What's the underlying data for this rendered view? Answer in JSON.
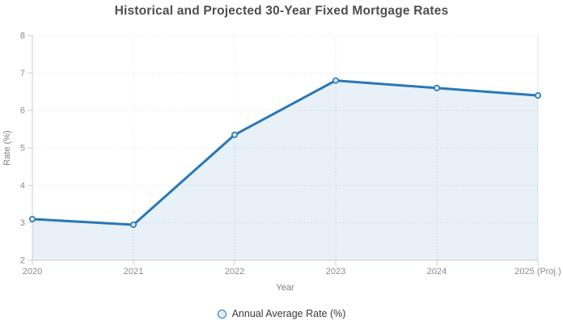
{
  "title": "Historical and Projected 30-Year Fixed Mortgage Rates",
  "legend": {
    "label": "Annual Average Rate (%)"
  },
  "chart_data": {
    "type": "area",
    "categories": [
      "2020",
      "2021",
      "2022",
      "2023",
      "2024",
      "2025 (Proj.)"
    ],
    "series": [
      {
        "name": "Annual Average Rate (%)",
        "values": [
          3.1,
          2.95,
          5.35,
          6.8,
          6.6,
          6.4
        ]
      }
    ],
    "title": "Historical and Projected 30-Year Fixed Mortgage Rates",
    "xlabel": "Year",
    "ylabel": "Rate (%)",
    "ylim": [
      2,
      8
    ],
    "yticks": [
      2,
      3,
      4,
      5,
      6,
      7,
      8
    ],
    "grid": true,
    "grid_style": "dotted",
    "legend_position": "bottom-center",
    "colors": {
      "line": "#2878b8",
      "area_fill": "rgba(40,120,184,0.10)",
      "marker_fill": "#d7e7f6",
      "marker_stroke": "#2878b8",
      "gridline": "#e4e4e4",
      "axis_line": "#cfcfcf",
      "tick_label": "#8c8c8c",
      "axis_title": "#7d7d7d",
      "chart_title": "#4f4f4f",
      "legend_text": "#3a3a3a"
    }
  }
}
